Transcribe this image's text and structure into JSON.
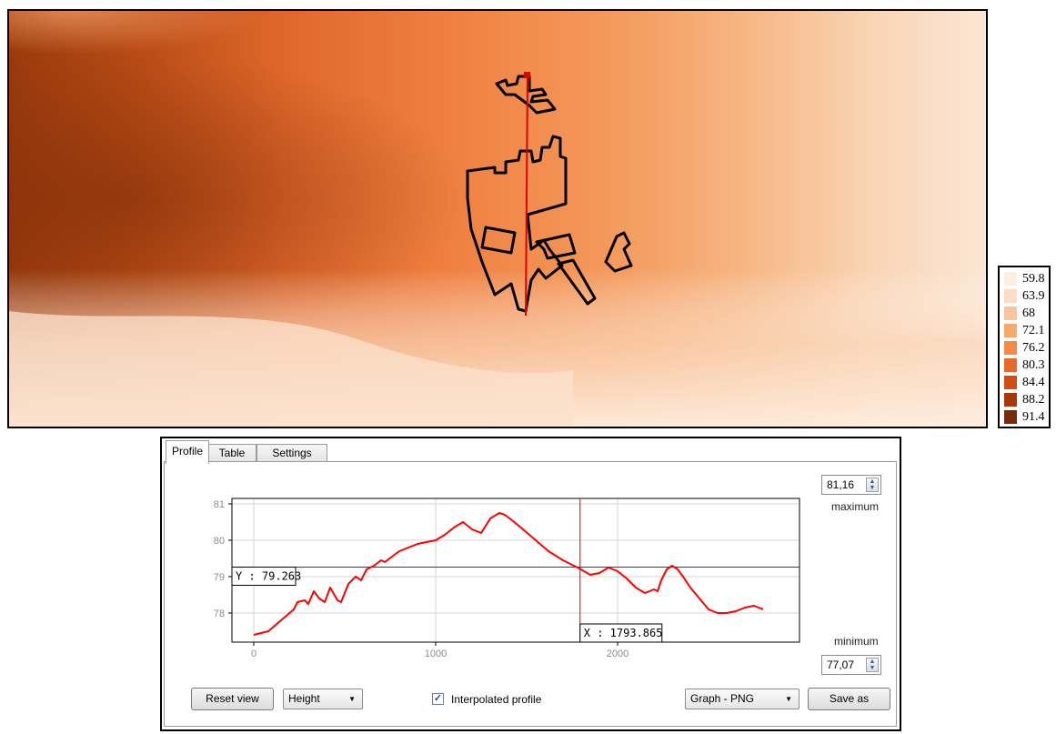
{
  "tabs": [
    {
      "label": "Profile",
      "active": true
    },
    {
      "label": "Table",
      "active": false
    },
    {
      "label": "Settings",
      "active": false
    }
  ],
  "legend": {
    "entries": [
      {
        "label": "59.8",
        "color": "#fdeee2"
      },
      {
        "label": "63.9",
        "color": "#fbdcc4"
      },
      {
        "label": "68",
        "color": "#f9c69b"
      },
      {
        "label": "72.1",
        "color": "#f7a96c"
      },
      {
        "label": "76.2",
        "color": "#f38b45"
      },
      {
        "label": "80.3",
        "color": "#e8692b"
      },
      {
        "label": "84.4",
        "color": "#d24d12"
      },
      {
        "label": "88.2",
        "color": "#a8380a"
      },
      {
        "label": "91.4",
        "color": "#7a2a08"
      }
    ]
  },
  "profile": {
    "max_value": "81,16",
    "max_caption": "maximum",
    "min_value": "77,07",
    "min_caption": "minimum",
    "cursor_y_label": "Y : 79.263",
    "cursor_x_label": "X : 1793.865",
    "reset_label": "Reset view",
    "mode_value": "Height",
    "interpolated_label": "Interpolated profile",
    "interpolated_checked": true,
    "export_value": "Graph - PNG",
    "save_label": "Save as"
  },
  "chart_data": {
    "type": "line",
    "xlim": [
      -120,
      3000
    ],
    "ylim": [
      77.2,
      81.15
    ],
    "xticks": [
      0,
      1000,
      2000
    ],
    "yticks": [
      78,
      79,
      80,
      81
    ],
    "crosshair": {
      "x": 1793.865,
      "y": 79.263
    },
    "line_color": "#ff0000",
    "x": [
      0,
      80,
      150,
      220,
      240,
      280,
      300,
      330,
      360,
      390,
      420,
      460,
      480,
      520,
      560,
      590,
      620,
      660,
      700,
      720,
      760,
      800,
      850,
      900,
      950,
      1000,
      1050,
      1100,
      1150,
      1200,
      1250,
      1300,
      1350,
      1380,
      1420,
      1480,
      1550,
      1620,
      1700,
      1780,
      1850,
      1900,
      1950,
      2000,
      2050,
      2100,
      2150,
      2200,
      2220,
      2240,
      2270,
      2300,
      2330,
      2360,
      2400,
      2450,
      2500,
      2550,
      2600,
      2650,
      2700,
      2750,
      2800
    ],
    "y": [
      77.4,
      77.5,
      77.8,
      78.1,
      78.3,
      78.35,
      78.25,
      78.6,
      78.4,
      78.3,
      78.7,
      78.35,
      78.3,
      78.8,
      79.0,
      78.9,
      79.2,
      79.3,
      79.45,
      79.4,
      79.55,
      79.7,
      79.8,
      79.9,
      79.95,
      80.0,
      80.15,
      80.35,
      80.5,
      80.3,
      80.2,
      80.6,
      80.75,
      80.7,
      80.55,
      80.3,
      80.0,
      79.7,
      79.45,
      79.25,
      79.05,
      79.1,
      79.25,
      79.15,
      78.95,
      78.7,
      78.55,
      78.65,
      78.6,
      78.9,
      79.2,
      79.3,
      79.2,
      79.0,
      78.7,
      78.4,
      78.1,
      78.0,
      78.0,
      78.05,
      78.15,
      78.2,
      78.1
    ]
  }
}
